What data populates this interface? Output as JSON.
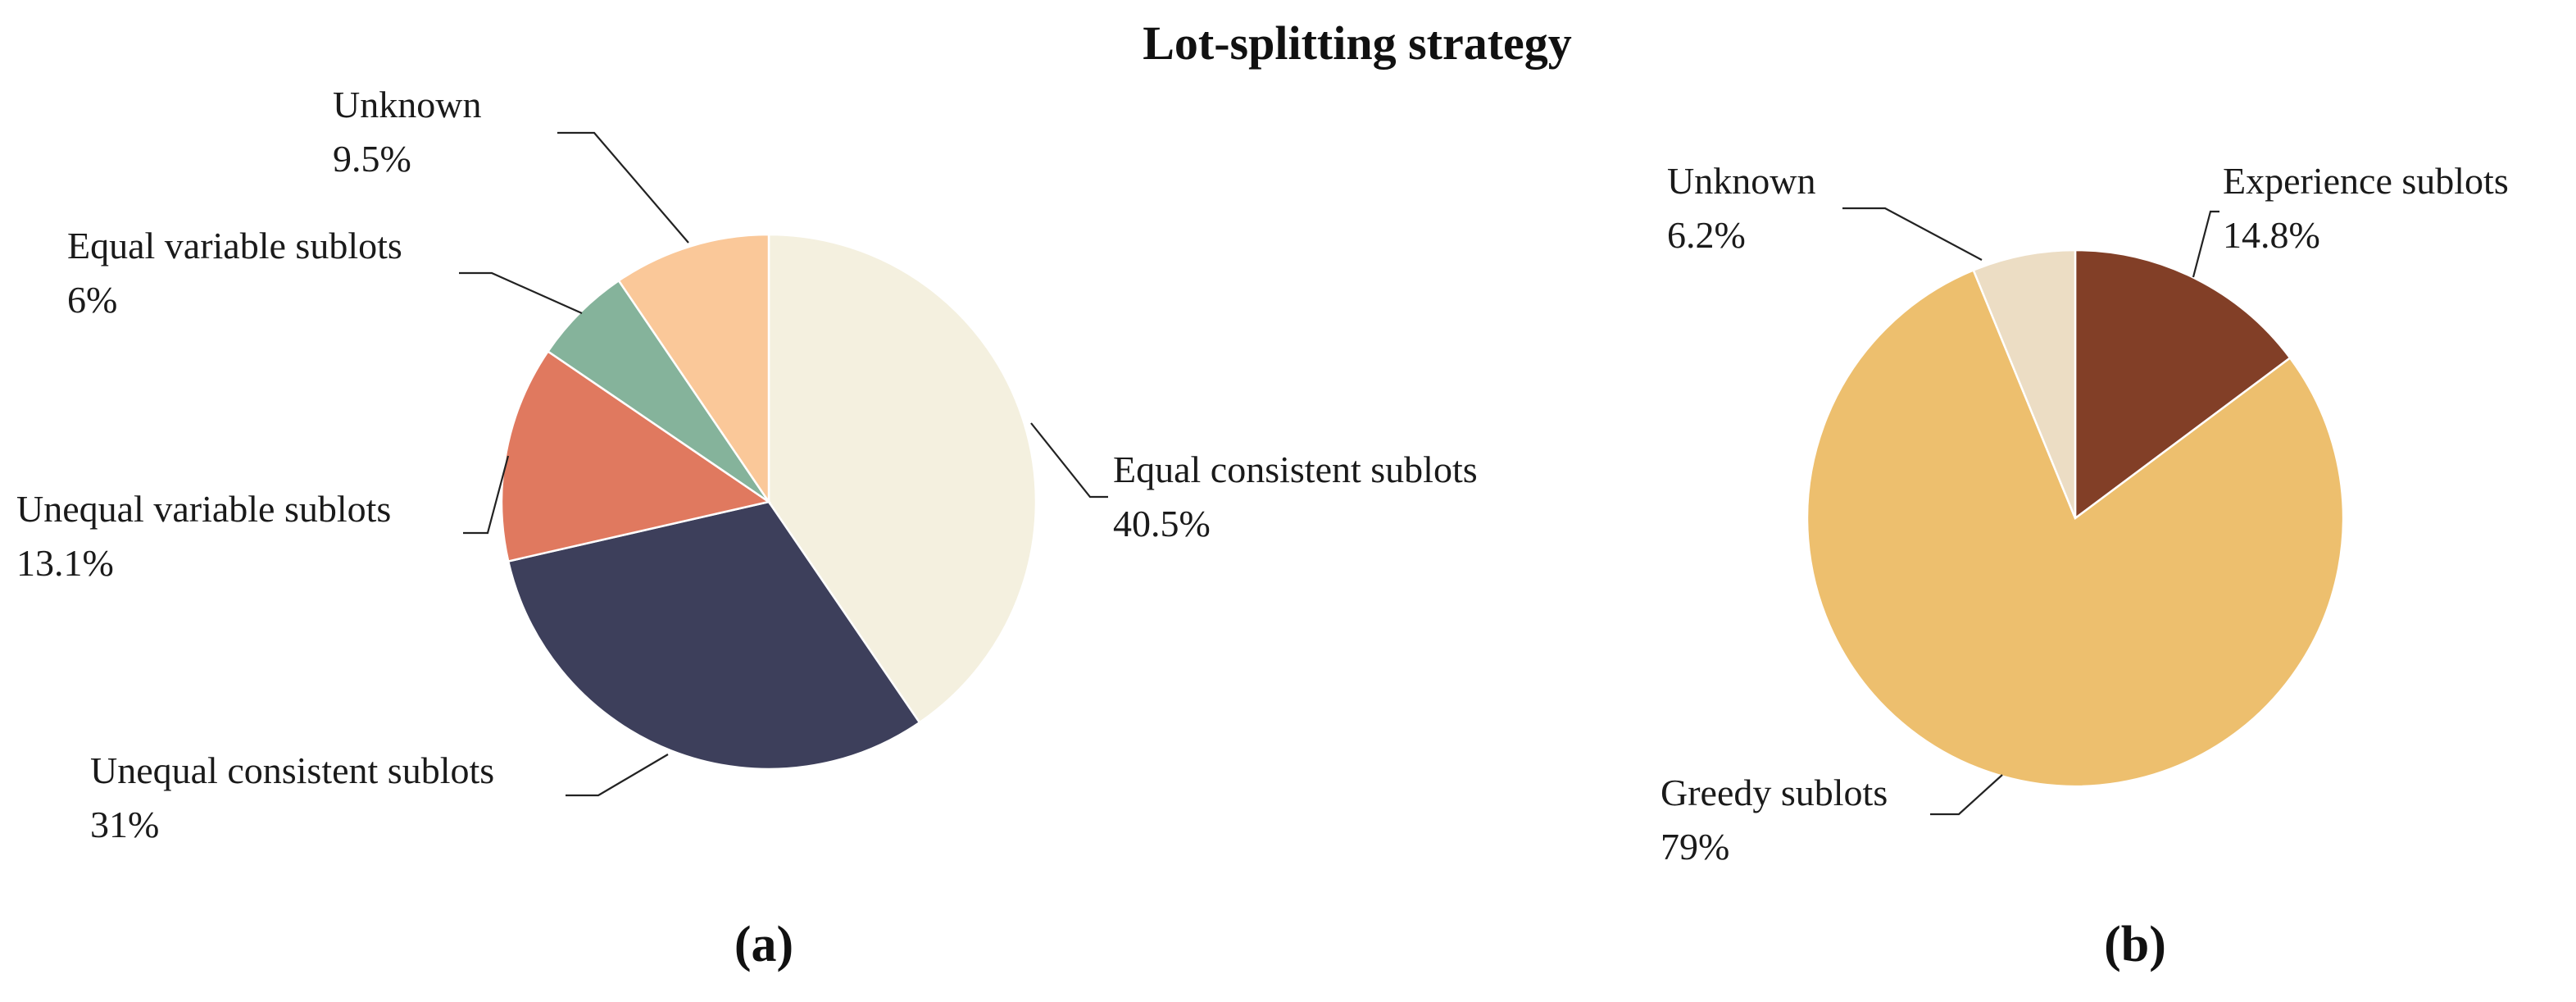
{
  "title": "Lot-splitting strategy",
  "chart_data": [
    {
      "type": "pie",
      "panel_label": "(a)",
      "title": "",
      "start_angle": "12 o'clock",
      "direction": "clockwise",
      "slices": [
        {
          "label": "Equal consistent sublots",
          "value": 40.5,
          "value_text": "40.5%",
          "color": "#F4F0DF"
        },
        {
          "label": "Unequal consistent sublots",
          "value": 31,
          "value_text": "31%",
          "color": "#3D3F5B"
        },
        {
          "label": "Unequal variable sublots",
          "value": 13.1,
          "value_text": "13.1%",
          "color": "#E0795F"
        },
        {
          "label": "Equal variable sublots",
          "value": 6,
          "value_text": "6%",
          "color": "#85B39B"
        },
        {
          "label": "Unknown",
          "value": 9.5,
          "value_text": "9.5%",
          "color": "#FAC899"
        }
      ]
    },
    {
      "type": "pie",
      "panel_label": "(b)",
      "title": "",
      "start_angle": "12 o'clock",
      "direction": "clockwise",
      "slices": [
        {
          "label": "Experience sublots",
          "value": 14.8,
          "value_text": "14.8%",
          "color": "#823F27"
        },
        {
          "label": "Greedy sublots",
          "value": 79,
          "value_text": "79%",
          "color": "#EDBF6E"
        },
        {
          "label": "Unknown",
          "value": 6.2,
          "value_text": "6.2%",
          "color": "#ECDDC4"
        }
      ]
    }
  ]
}
